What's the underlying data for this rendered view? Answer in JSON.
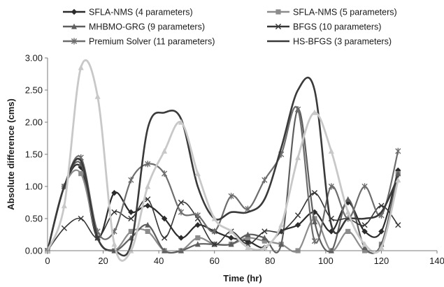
{
  "chart_data": {
    "type": "line",
    "xlabel": "Time (hr)",
    "ylabel": "Absolute difference (cms)",
    "xlim": [
      0,
      140
    ],
    "ylim": [
      0,
      3
    ],
    "x_ticks": [
      "0",
      "20",
      "40",
      "60",
      "80",
      "100",
      "120",
      "140"
    ],
    "y_ticks": [
      "0.00",
      "0.50",
      "1.00",
      "1.50",
      "2.00",
      "2.50",
      "3.00"
    ],
    "grid": false,
    "legend_position": "top",
    "series": [
      {
        "name": "SFLA-NMS (4 parameters)",
        "color": "#2b2b2b",
        "marker": "diamond",
        "x": [
          0,
          6,
          12,
          18,
          24,
          30,
          36,
          42,
          48,
          54,
          60,
          66,
          72,
          78,
          84,
          90,
          96,
          102,
          108,
          114,
          120,
          126
        ],
        "y": [
          0,
          1.0,
          1.3,
          0.2,
          0.9,
          0.6,
          0.7,
          0.5,
          0.2,
          0.4,
          0.3,
          0.2,
          0.15,
          0.05,
          0.3,
          0.4,
          0.6,
          0.3,
          0.75,
          0.3,
          0.3,
          1.25
        ]
      },
      {
        "name": "SFLA-NMS (5 parameters)",
        "color": "#8c8c8c",
        "marker": "square",
        "x": [
          0,
          6,
          12,
          18,
          24,
          30,
          36,
          42,
          48,
          54,
          60,
          66,
          72,
          78,
          84,
          90,
          96,
          102,
          108,
          114,
          120,
          126
        ],
        "y": [
          0,
          1.0,
          1.2,
          0.2,
          0.0,
          0.3,
          0.3,
          0.0,
          0.0,
          0.2,
          0.1,
          0.1,
          0.2,
          0.15,
          0.1,
          0.0,
          0.5,
          0.0,
          0.3,
          0.0,
          0.1,
          1.2
        ]
      },
      {
        "name": "MHBMO-GRG (9 parameters)",
        "color": "#5e5e5e",
        "marker": "triangle",
        "x": [
          0,
          6,
          12,
          18,
          24,
          30,
          36,
          42,
          48,
          54,
          60,
          66,
          72,
          78,
          84,
          90,
          96,
          102,
          108,
          114,
          120,
          126
        ],
        "y": [
          0,
          1.0,
          1.35,
          0.2,
          0.0,
          0.2,
          0.4,
          0.0,
          0.0,
          0.1,
          0.1,
          0.1,
          0.25,
          0.2,
          0.1,
          2.2,
          0.45,
          0.0,
          0.8,
          0.05,
          0.1,
          1.2
        ]
      },
      {
        "name": "BFGS (10 parameters)",
        "color": "#353535",
        "marker": "x",
        "x": [
          0,
          6,
          12,
          18,
          24,
          30,
          36,
          42,
          48,
          54,
          60,
          66,
          72,
          78,
          84,
          90,
          96,
          102,
          108,
          114,
          120,
          126
        ],
        "y": [
          0,
          0.35,
          0.5,
          0.2,
          0.6,
          0.5,
          0.8,
          0.2,
          0.75,
          0.5,
          0.1,
          0.3,
          0.1,
          0.3,
          0.3,
          0.55,
          0.9,
          0.5,
          0.5,
          0.4,
          0.7,
          0.4
        ]
      },
      {
        "name": "Premium Solver (11 parameters)",
        "color": "#6d6d6d",
        "marker": "star",
        "x": [
          0,
          6,
          12,
          18,
          24,
          30,
          36,
          42,
          48,
          54,
          60,
          66,
          72,
          78,
          84,
          90,
          96,
          102,
          108,
          114,
          120,
          126
        ],
        "y": [
          0,
          1.0,
          1.45,
          0.3,
          0.3,
          1.1,
          1.35,
          1.2,
          0.6,
          0.55,
          0.3,
          0.85,
          0.65,
          1.1,
          1.5,
          2.2,
          0.15,
          1.0,
          0.5,
          1.0,
          0.55,
          1.55
        ]
      },
      {
        "name": "HS-BFGS (3 parameters)",
        "color": "#3a3a3a",
        "marker": "none",
        "x": [
          0,
          6,
          12,
          18,
          24,
          30,
          36,
          42,
          48,
          54,
          60,
          66,
          72,
          78,
          84,
          90,
          96,
          102,
          108,
          114,
          120,
          126
        ],
        "y": [
          0,
          1.0,
          1.4,
          0.2,
          0.0,
          0.1,
          1.9,
          2.15,
          2.05,
          1.0,
          0.5,
          0.6,
          0.6,
          0.8,
          1.6,
          2.5,
          2.5,
          0.4,
          0.5,
          0.5,
          0.6,
          1.15
        ]
      },
      {
        "name": "",
        "color": "#c8c8c8",
        "marker": "triangle",
        "x": [
          0,
          6,
          12,
          18,
          24,
          30,
          36,
          42,
          48,
          54,
          60,
          66,
          72,
          78,
          84,
          90,
          96,
          102,
          108,
          114,
          120,
          126
        ],
        "y": [
          0,
          0.7,
          2.85,
          2.4,
          0.1,
          0.0,
          1.0,
          1.55,
          2.0,
          1.2,
          0.5,
          0.3,
          0.05,
          0.05,
          0.4,
          1.45,
          2.15,
          1.55,
          0.6,
          0.1,
          0.05,
          1.1
        ]
      }
    ]
  }
}
